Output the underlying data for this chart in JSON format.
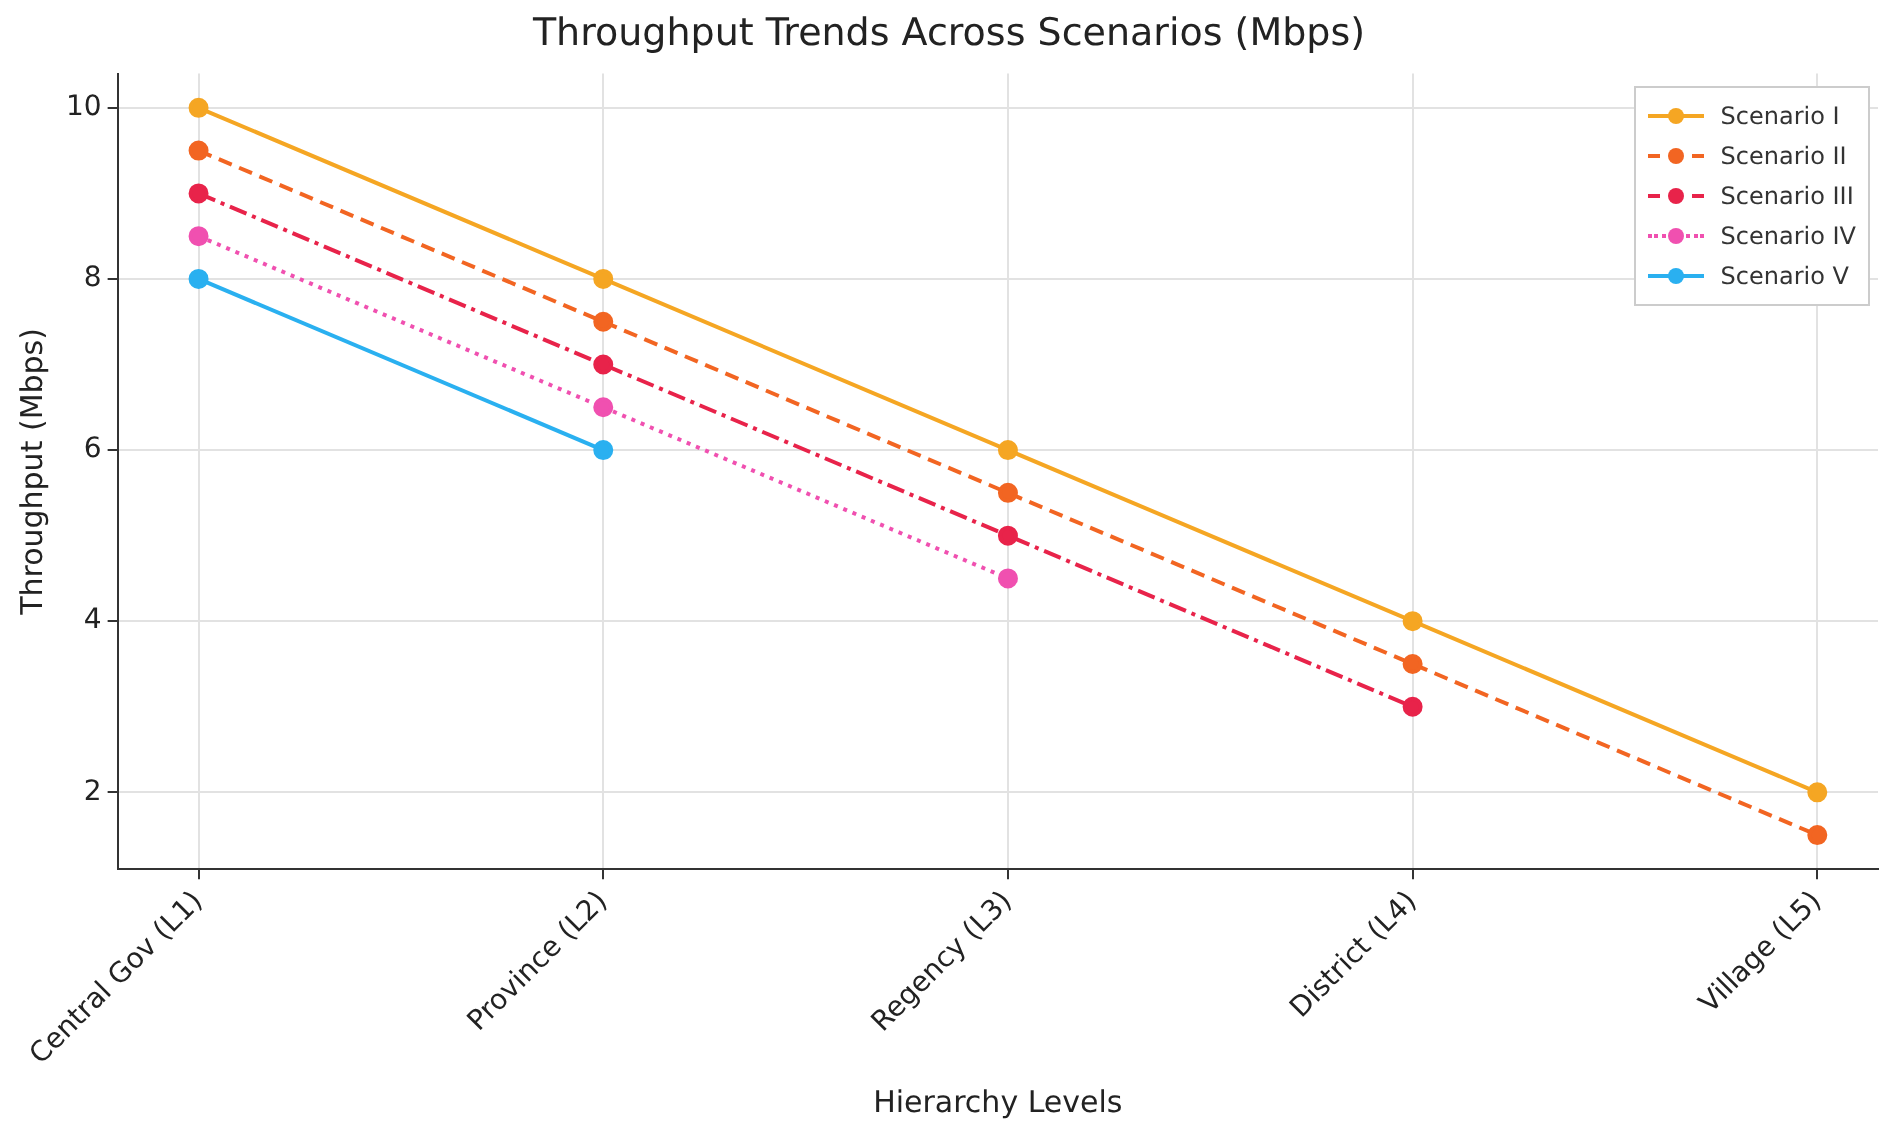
{
  "chart_data": {
    "type": "line",
    "title": "Throughput Trends Across Scenarios (Mbps)",
    "xlabel": "Hierarchy Levels",
    "ylabel": "Throughput (Mbps)",
    "categories": [
      "Central Gov (L1)",
      "Province (L2)",
      "Regency (L3)",
      "District (L4)",
      "Village (L5)"
    ],
    "series": [
      {
        "name": "Scenario I",
        "color": "#f5a623",
        "line_style": "solid",
        "values": [
          10,
          8,
          6,
          4,
          2
        ]
      },
      {
        "name": "Scenario II",
        "color": "#f26522",
        "line_style": "dashed",
        "values": [
          9.5,
          7.5,
          5.5,
          3.5,
          1.5
        ]
      },
      {
        "name": "Scenario III",
        "color": "#e8234a",
        "line_style": "dashdot",
        "values": [
          9,
          7,
          5,
          3,
          null
        ]
      },
      {
        "name": "Scenario IV",
        "color": "#f050b0",
        "line_style": "dotted",
        "values": [
          8.5,
          6.5,
          4.5,
          null,
          null
        ]
      },
      {
        "name": "Scenario V",
        "color": "#2ab0f0",
        "line_style": "solid",
        "values": [
          8,
          6,
          null,
          null,
          null
        ]
      }
    ],
    "ylim": [
      1.1,
      10.4
    ],
    "yticks": [
      2,
      4,
      6,
      8,
      10
    ],
    "grid": true,
    "legend": "top right",
    "marker": "circle"
  }
}
